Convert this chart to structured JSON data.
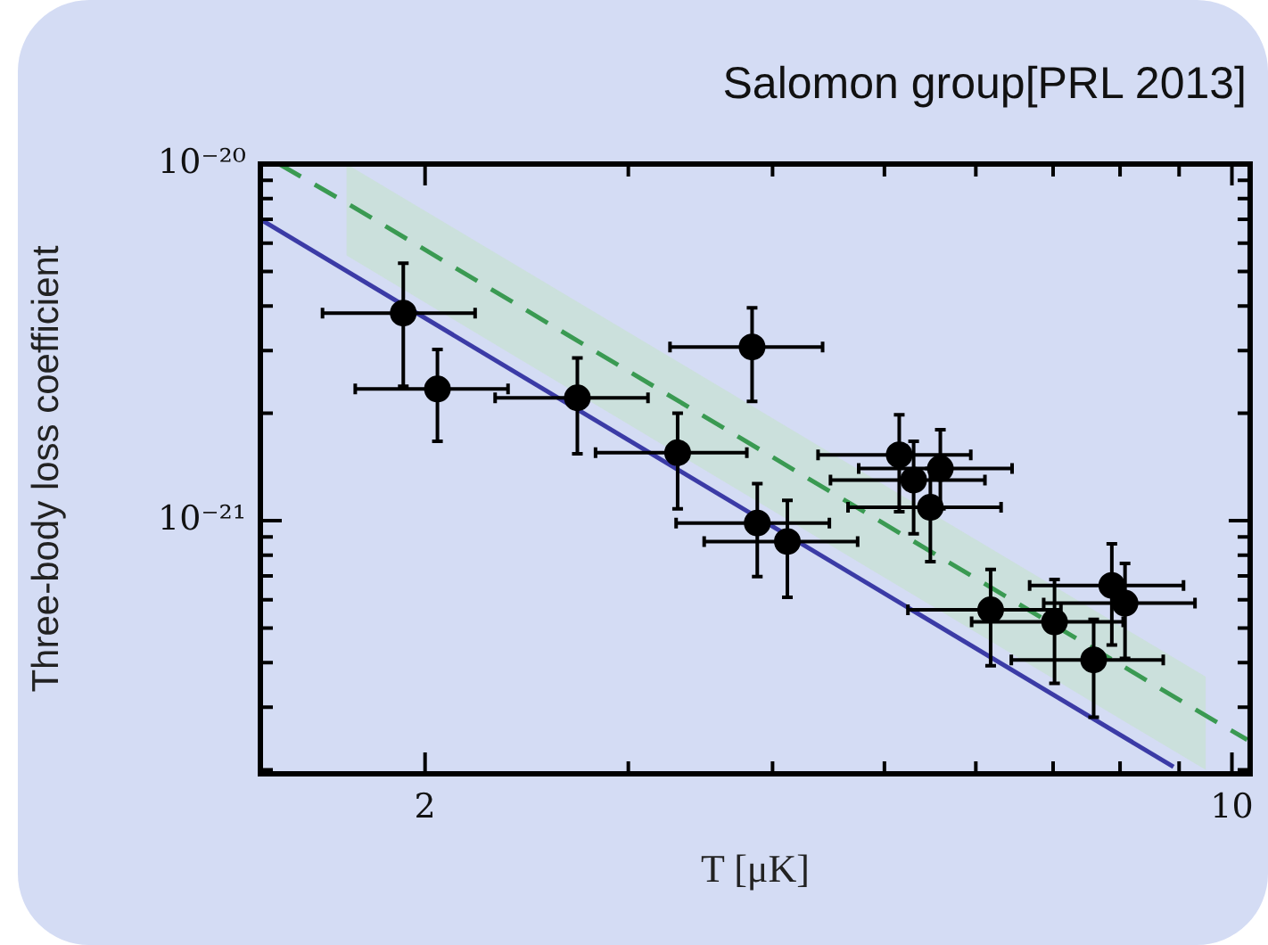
{
  "chart_data": {
    "type": "scatter",
    "title": "Salomon group[PRL 2013]",
    "xlabel": "T [μK]",
    "ylabel": "Three-body loss coefficient",
    "log": "xy",
    "grid": false,
    "legend": false,
    "xlim": [
      1.44,
      10.37
    ],
    "ylim": [
      1.95e-22,
      1e-20
    ],
    "xticks": [
      {
        "value": 2,
        "label": "2"
      },
      {
        "value": 3,
        "label": null
      },
      {
        "value": 4,
        "label": null
      },
      {
        "value": 5,
        "label": null
      },
      {
        "value": 6,
        "label": null
      },
      {
        "value": 7,
        "label": null
      },
      {
        "value": 8,
        "label": null
      },
      {
        "value": 9,
        "label": null
      },
      {
        "value": 10,
        "label": "10"
      }
    ],
    "yticks": [
      {
        "value": 2e-22,
        "label": null
      },
      {
        "value": 3e-22,
        "label": null
      },
      {
        "value": 4e-22,
        "label": null
      },
      {
        "value": 5e-22,
        "label": null
      },
      {
        "value": 6e-22,
        "label": null
      },
      {
        "value": 7e-22,
        "label": null
      },
      {
        "value": 8e-22,
        "label": null
      },
      {
        "value": 9e-22,
        "label": null
      },
      {
        "value": 1e-21,
        "label": "10⁻²¹"
      },
      {
        "value": 2e-21,
        "label": null
      },
      {
        "value": 3e-21,
        "label": null
      },
      {
        "value": 4e-21,
        "label": null
      },
      {
        "value": 5e-21,
        "label": null
      },
      {
        "value": 6e-21,
        "label": null
      },
      {
        "value": 7e-21,
        "label": null
      },
      {
        "value": 8e-21,
        "label": null
      },
      {
        "value": 9e-21,
        "label": null
      },
      {
        "value": 1e-20,
        "label": "10⁻²⁰"
      }
    ],
    "series": [
      {
        "type": "line",
        "color": "#3b3ba6",
        "line_style": "solid",
        "marker": "none",
        "x": [
          1.443,
          8.9
        ],
        "values": [
          6.97e-21,
          2.04e-22
        ]
      },
      {
        "type": "line",
        "color": "#3a9a52",
        "line_style": "dashed",
        "marker": "none",
        "x": [
          1.495,
          1.71,
          9.49,
          10.31
        ],
        "values": [
          1e-20,
          7.78e-21,
          2.84e-22,
          2.43e-22
        ],
        "lower": [
          null,
          5.54e-21,
          2e-22,
          null
        ],
        "upper": [
          null,
          1e-20,
          3.65e-22,
          null
        ]
      },
      {
        "type": "scatter",
        "color": "#000000",
        "marker": "circle",
        "x": [
          1.915,
          2.05,
          2.71,
          3.31,
          3.84,
          3.88,
          4.12,
          5.15,
          5.3,
          5.59,
          5.48,
          6.18,
          7.02,
          7.59,
          7.87,
          8.08
        ],
        "values": [
          3.82e-21,
          2.34e-21,
          2.21e-21,
          1.55e-21,
          3.07e-21,
          9.85e-22,
          8.74e-22,
          1.53e-21,
          1.3e-21,
          1.4e-21,
          1.09e-21,
          5.62e-22,
          5.2e-22,
          4.07e-22,
          6.58e-22,
          5.87e-22
        ],
        "errors": [
          [
            2.38e-21,
            5.27e-21
          ],
          [
            1.67e-21,
            3.02e-21
          ],
          [
            1.54e-21,
            2.86e-21
          ],
          [
            1.08e-21,
            2e-21
          ],
          [
            2.16e-21,
            3.95e-21
          ],
          [
            6.97e-22,
            1.27e-21
          ],
          [
            6.1e-22,
            1.14e-21
          ],
          [
            1.06e-21,
            1.98e-21
          ],
          [
            9.19e-22,
            1.67e-21
          ],
          [
            1.08e-21,
            1.8e-21
          ],
          [
            7.67e-22,
            1.4e-21
          ],
          [
            3.92e-22,
            7.3e-22
          ],
          [
            3.5e-22,
            6.84e-22
          ],
          [
            2.81e-22,
            5.29e-22
          ],
          [
            4.48e-22,
            8.61e-22
          ],
          [
            4.11e-22,
            7.59e-22
          ]
        ],
        "xerrors": [
          [
            1.63,
            2.21
          ],
          [
            1.74,
            2.36
          ],
          [
            2.3,
            3.12
          ],
          [
            2.81,
            3.8
          ],
          [
            3.26,
            4.42
          ],
          [
            3.3,
            4.48
          ],
          [
            3.49,
            4.74
          ],
          [
            4.38,
            5.94
          ],
          [
            4.49,
            6.11
          ],
          [
            4.75,
            6.45
          ],
          [
            4.65,
            6.31
          ],
          [
            5.24,
            7.11
          ],
          [
            5.95,
            8.05
          ],
          [
            6.44,
            8.72
          ],
          [
            6.68,
            9.08
          ],
          [
            6.87,
            9.29
          ]
        ]
      }
    ]
  }
}
